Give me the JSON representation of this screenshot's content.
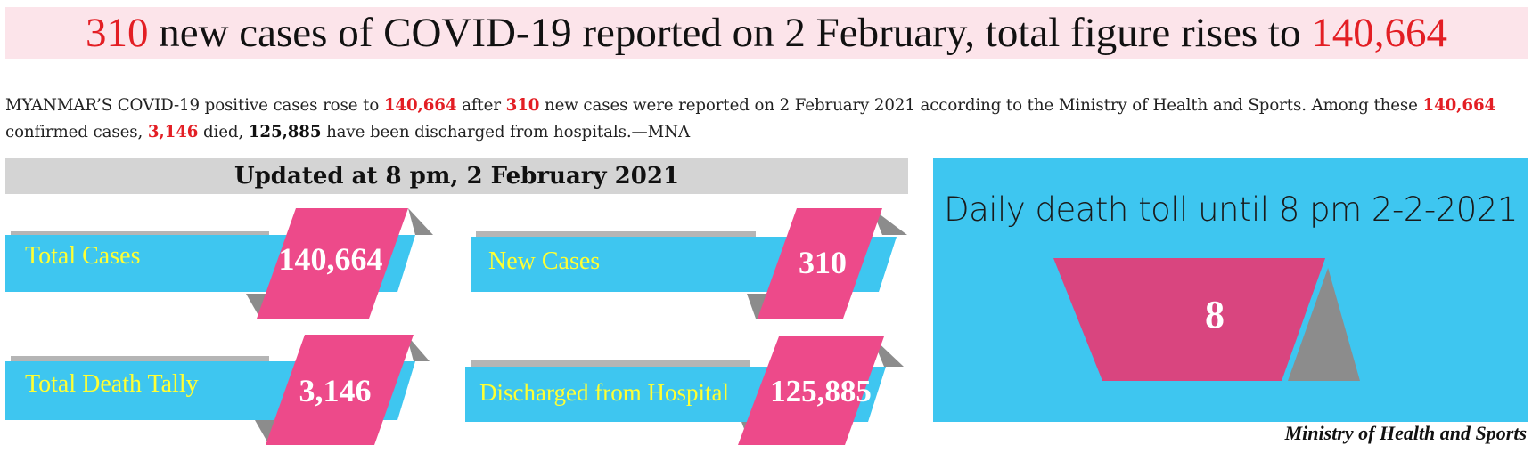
{
  "headline": {
    "new_cases": "310",
    "middle": " new cases of COVID-19 reported on 2 February, total figure rises to ",
    "total": "140,664"
  },
  "lead": {
    "part1": "MYANMAR’S COVID-19 positive cases rose to ",
    "total": "140,664",
    "part2": " after ",
    "new_cases": "310",
    "part3": " new cases were reported on 2 February 2021 according to the Ministry of Health and Sports. Among these ",
    "total2": "140,664",
    "part4": " confirmed cases, ",
    "deaths": "3,146",
    "part5": " died, ",
    "discharged": "125,885",
    "part6": " have been discharged from hospitals.—MNA"
  },
  "updated": "Updated at 8 pm, 2 February 2021",
  "tiles": [
    {
      "label": "Total Cases",
      "value": "140,664"
    },
    {
      "label": "New Cases",
      "value": "310"
    },
    {
      "label": "Total Death Tally",
      "value": "3,146"
    },
    {
      "label": "Discharged from Hospital",
      "value": "125,885"
    }
  ],
  "death_panel": {
    "title": "Daily death toll until 8 pm 2-2-2021",
    "value": "8"
  },
  "source": "Ministry of Health and Sports",
  "colors": {
    "red": "#e31e24",
    "blue": "#3ec6f0",
    "pink": "#ed4a8a",
    "gray": "#8c8c8c",
    "label_yellow": "#ffff33"
  }
}
